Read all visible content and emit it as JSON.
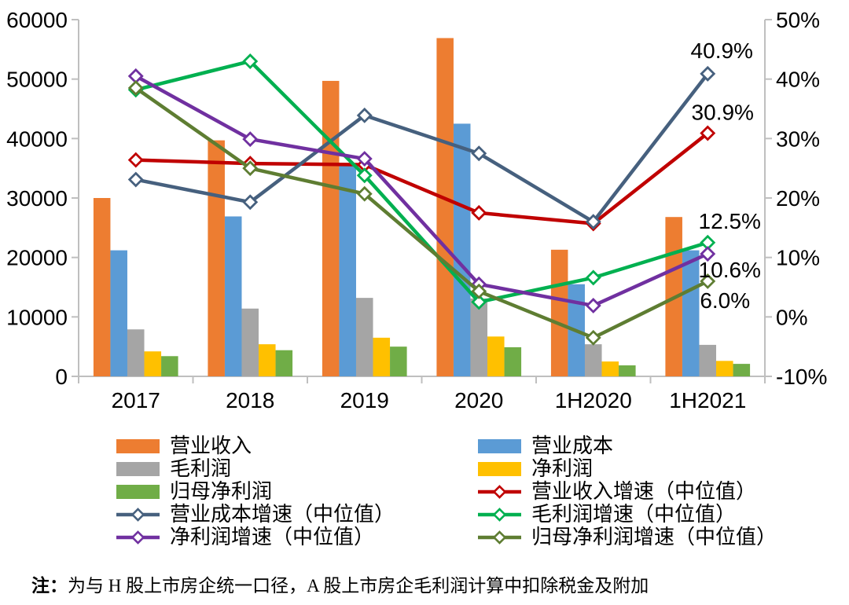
{
  "chart_data": {
    "type": "combo",
    "categories": [
      "2017",
      "2018",
      "2019",
      "2020",
      "1H2020",
      "1H2021"
    ],
    "bar_series": [
      {
        "name": "营业收入",
        "color": "#ED7D31",
        "axis": "left",
        "values": [
          30000,
          39700,
          49700,
          56900,
          21300,
          26800
        ]
      },
      {
        "name": "营业成本",
        "color": "#5B9BD5",
        "axis": "left",
        "values": [
          21200,
          26900,
          35400,
          42500,
          15500,
          21200
        ]
      },
      {
        "name": "毛利润",
        "color": "#A5A5A5",
        "axis": "left",
        "values": [
          7900,
          11400,
          13200,
          13100,
          5400,
          5300
        ]
      },
      {
        "name": "净利润",
        "color": "#FFC000",
        "axis": "left",
        "values": [
          4200,
          5400,
          6500,
          6700,
          2500,
          2600
        ]
      },
      {
        "name": "归母净利润",
        "color": "#70AD47",
        "axis": "left",
        "values": [
          3400,
          4400,
          5000,
          4900,
          1850,
          2100
        ]
      }
    ],
    "line_series": [
      {
        "name": "营业收入增速（中位值）",
        "color": "#C00000",
        "axis": "right",
        "values": [
          26.4,
          25.8,
          25.6,
          17.5,
          15.7,
          30.9
        ]
      },
      {
        "name": "营业成本增速（中位值）",
        "color": "#46607E",
        "axis": "right",
        "values": [
          23.1,
          19.3,
          33.9,
          27.5,
          16.0,
          40.9
        ]
      },
      {
        "name": "毛利润增速（中位值）",
        "color": "#00B050",
        "axis": "right",
        "values": [
          38.2,
          43.0,
          23.8,
          2.5,
          6.6,
          12.5
        ]
      },
      {
        "name": "净利润增速（中位值）",
        "color": "#7030A0",
        "axis": "right",
        "values": [
          40.5,
          29.9,
          26.6,
          5.5,
          1.9,
          10.6
        ]
      },
      {
        "name": "归母净利润增速（中位值）",
        "color": "#5E7D32",
        "axis": "right",
        "values": [
          38.5,
          25.0,
          20.7,
          4.3,
          -3.5,
          6.0
        ]
      }
    ],
    "left_axis": {
      "min": 0,
      "max": 60000,
      "step": 10000,
      "tick_labels": [
        "0",
        "10000",
        "20000",
        "30000",
        "40000",
        "50000",
        "60000"
      ]
    },
    "right_axis": {
      "min": -10,
      "max": 50,
      "step": 10,
      "suffix": "%",
      "tick_labels": [
        "-10%",
        "0%",
        "10%",
        "20%",
        "30%",
        "40%",
        "50%"
      ]
    },
    "annotations": [
      {
        "series": "营业成本增速（中位值）",
        "text": "40.9%"
      },
      {
        "series": "营业收入增速（中位值）",
        "text": "30.9%"
      },
      {
        "series": "毛利润增速（中位值）",
        "text": "12.5%"
      },
      {
        "series": "净利润增速（中位值）",
        "text": "10.6%"
      },
      {
        "series": "归母净利润增速（中位值）",
        "text": "6.0%"
      }
    ],
    "grid": "off",
    "legend_position": "bottom"
  },
  "legend": {
    "items": [
      {
        "label": "营业收入",
        "marker": "bar"
      },
      {
        "label": "营业成本",
        "marker": "bar"
      },
      {
        "label": "毛利润",
        "marker": "bar"
      },
      {
        "label": "净利润",
        "marker": "bar"
      },
      {
        "label": "归母净利润",
        "marker": "bar"
      },
      {
        "label": "营业收入增速（中位值）",
        "marker": "line"
      },
      {
        "label": "营业成本增速（中位值）",
        "marker": "line"
      },
      {
        "label": "毛利润增速（中位值）",
        "marker": "line"
      },
      {
        "label": "净利润增速（中位值）",
        "marker": "line"
      },
      {
        "label": "归母净利润增速（中位值）",
        "marker": "line"
      }
    ]
  },
  "note": {
    "label": "注：",
    "text": "为与 H 股上市房企统一口径，A 股上市房企毛利润计算中扣除税金及附加"
  },
  "colors": {
    "axis_line": "#BFBFBF",
    "text": "#000000",
    "background": "#FFFFFF"
  }
}
